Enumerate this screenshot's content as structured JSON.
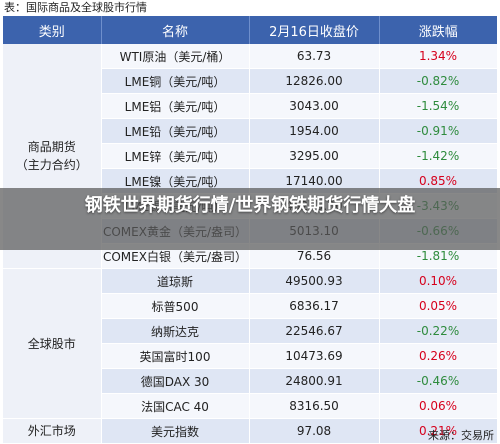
{
  "page_title": "表：国际商品及全球股市行情",
  "headers": [
    "类别",
    "名称",
    "2月16日收盘价",
    "涨跌幅"
  ],
  "categories": {
    "commodities": "商品期货\n（主力合约）",
    "stocks": "全球股市",
    "forex": "外汇市场"
  },
  "rows": [
    {
      "name": "WTI原油（美元/桶）",
      "price": "63.73",
      "change": "1.34%",
      "dir": "up"
    },
    {
      "name": "LME铜（美元/吨）",
      "price": "12826.00",
      "change": "-0.82%",
      "dir": "down"
    },
    {
      "name": "LME铝（美元/吨）",
      "price": "3043.00",
      "change": "-1.54%",
      "dir": "down"
    },
    {
      "name": "LME铅（美元/吨）",
      "price": "1954.00",
      "change": "-0.91%",
      "dir": "down"
    },
    {
      "name": "LME锌（美元/吨）",
      "price": "3295.00",
      "change": "-1.42%",
      "dir": "down"
    },
    {
      "name": "LME镍（美元/吨）",
      "price": "17140.00",
      "change": "0.85%",
      "dir": "up"
    },
    {
      "name": "LME锡（美元/吨）",
      "price": "45245.00",
      "change": "-3.43%",
      "dir": "down"
    },
    {
      "name": "COMEX黄金（美元/盎司）",
      "price": "5013.10",
      "change": "-0.66%",
      "dir": "down"
    },
    {
      "name": "COMEX白银（美元/盎司）",
      "price": "76.56",
      "change": "-1.81%",
      "dir": "down"
    },
    {
      "name": "道琼斯",
      "price": "49500.93",
      "change": "0.10%",
      "dir": "up"
    },
    {
      "name": "标普500",
      "price": "6836.17",
      "change": "0.05%",
      "dir": "up"
    },
    {
      "name": "纳斯达克",
      "price": "22546.67",
      "change": "-0.22%",
      "dir": "down"
    },
    {
      "name": "英国富时100",
      "price": "10473.69",
      "change": "0.26%",
      "dir": "up"
    },
    {
      "name": "德国DAX 30",
      "price": "24800.91",
      "change": "-0.46%",
      "dir": "down"
    },
    {
      "name": "法国CAC 40",
      "price": "8316.50",
      "change": "0.06%",
      "dir": "up"
    },
    {
      "name": "美元指数",
      "price": "97.08",
      "change": "0.21%",
      "dir": "up"
    }
  ],
  "source": "来源：交易所",
  "overlay_title": "钢铁世界期货行情/世界钢铁期货行情大盘",
  "colors": {
    "header_bg": "#3c63ad",
    "up": "#d6001c",
    "down": "#2e8b3d"
  }
}
